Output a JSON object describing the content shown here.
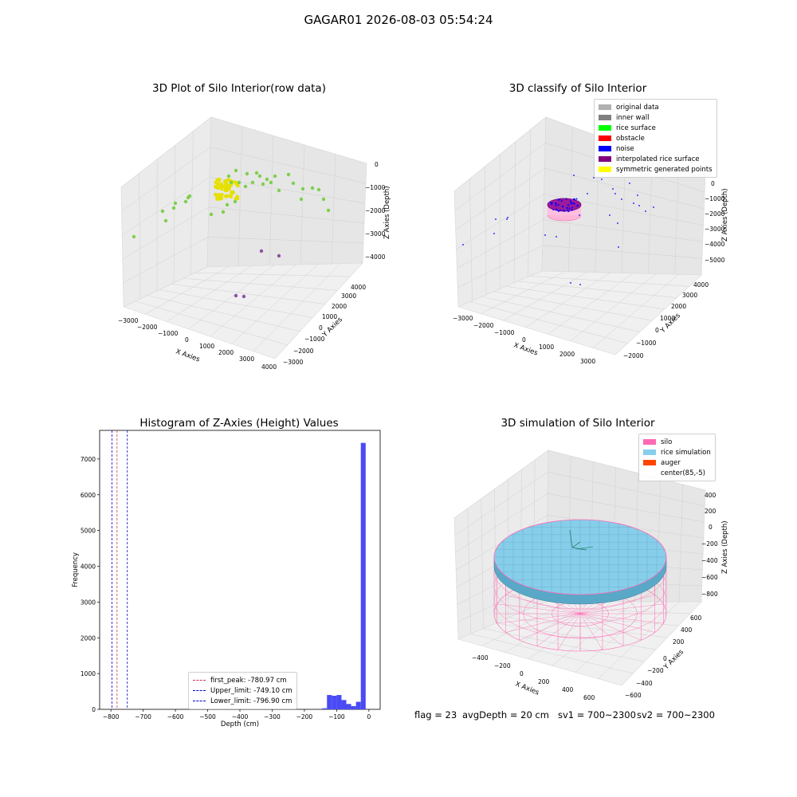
{
  "figure": {
    "suptitle": "GAGAR01 2026-08-03 05:54:24",
    "footer": {
      "flag": "flag = 23",
      "avg": "avgDepth = 20 cm",
      "sv1": "sv1 = 700~2300",
      "sv2": "sv2 = 700~2300"
    }
  },
  "colors": {
    "original": "#b0b0b0",
    "inner_wall": "#808080",
    "rice_surface": "#00ff00",
    "obstacle": "#ff0000",
    "noise": "#0000ff",
    "interpolated": "#800080",
    "symmetric": "#ffff00",
    "silo": "#ff69b4",
    "rice_sim": "#87ceeb",
    "auger": "#ff4500",
    "hist_bar": "#4a4af5"
  },
  "chart_data": [
    {
      "type": "scatter3d",
      "title": "3D Plot of Silo Interior(row data)",
      "xlabel": "X Axies",
      "ylabel": "Y Axies",
      "zlabel": "Z Axies (Depth)",
      "xticks": [
        "−3000",
        "−2000",
        "−1000",
        "0",
        "1000",
        "2000",
        "3000",
        "4000"
      ],
      "yticks": [
        "−3000",
        "−2000",
        "−1000",
        "0",
        "1000",
        "2000",
        "3000",
        "4000"
      ],
      "zticks": [
        "0",
        "−1000",
        "−2000",
        "−3000",
        "−4000"
      ]
    },
    {
      "type": "scatter3d",
      "title": "3D classify of Silo Interior",
      "xlabel": "X Axies",
      "ylabel": "Y Axies",
      "zlabel": "Z Axies (Depth)",
      "xticks": [
        "−3000",
        "−2000",
        "−1000",
        "0",
        "1000",
        "2000",
        "3000"
      ],
      "yticks": [
        "−2000",
        "−1000",
        "0",
        "1000",
        "2000",
        "3000",
        "4000"
      ],
      "zticks": [
        "0",
        "−1000",
        "−2000",
        "−3000",
        "−4000",
        "−5000"
      ],
      "legend": [
        "original data",
        "inner wall",
        "rice surface",
        "obstacle",
        "noise",
        "interpolated rice surface",
        "symmetric generated points"
      ],
      "legend_position": "top-right"
    },
    {
      "type": "bar",
      "title": "Histogram of Z-Axies (Height) Values",
      "xlabel": "Depth (cm)",
      "ylabel": "Frequency",
      "xlim": [
        -835,
        35
      ],
      "ylim": [
        0,
        7800
      ],
      "xticks": [
        -800,
        -700,
        -600,
        -500,
        -400,
        -300,
        -200,
        -100,
        0
      ],
      "xtick_labels": [
        "−800",
        "−700",
        "−600",
        "−500",
        "−400",
        "−300",
        "−200",
        "−100",
        "0"
      ],
      "yticks": [
        0,
        1000,
        2000,
        3000,
        4000,
        5000,
        6000,
        7000
      ],
      "bin_width": 15,
      "bins": [
        {
          "start": -145,
          "value": 30
        },
        {
          "start": -130,
          "value": 400
        },
        {
          "start": -115,
          "value": 380
        },
        {
          "start": -100,
          "value": 400
        },
        {
          "start": -85,
          "value": 260
        },
        {
          "start": -70,
          "value": 150
        },
        {
          "start": -55,
          "value": 90
        },
        {
          "start": -40,
          "value": 210
        },
        {
          "start": -25,
          "value": 7450
        }
      ],
      "vlines": [
        {
          "label": "first_peak: -780.97 cm",
          "x": -780.97,
          "color": "#cc3355"
        },
        {
          "label": "Upper_limit: -749.10 cm",
          "x": -749.1,
          "color": "#0000cc"
        },
        {
          "label": "Lower_limit: -796.90 cm",
          "x": -796.9,
          "color": "#0000cc"
        }
      ],
      "legend_position": "lower-center"
    },
    {
      "type": "surface3d",
      "title": "3D simulation of Silo Interior",
      "xlabel": "X Axies",
      "ylabel": "Y Axies",
      "zlabel": "Z Axies (Depth)",
      "xticks": [
        "−400",
        "−200",
        "0",
        "200",
        "400",
        "600"
      ],
      "yticks": [
        "−600",
        "−400",
        "−200",
        "0",
        "200",
        "400",
        "600"
      ],
      "zticks": [
        "400",
        "200",
        "0",
        "−200",
        "−400",
        "−600",
        "−800"
      ],
      "legend": [
        "silo",
        "rice simulation",
        "auger",
        "center(85,-5)"
      ],
      "legend_position": "top-right"
    }
  ]
}
